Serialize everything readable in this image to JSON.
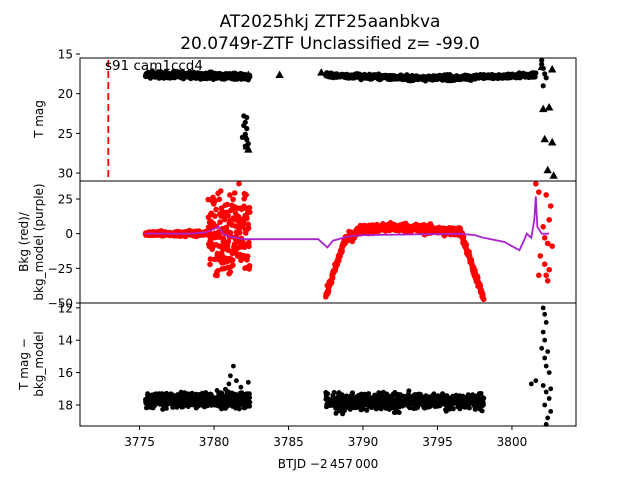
{
  "figure": {
    "title_line1": "AT2025hkj  ZTF25aanbkva",
    "title_line2": "20.0749r-ZTF Unclassified z= -99.0",
    "xlabel": "BTJD −2 457 000",
    "xlim": [
      3771,
      3804.3
    ],
    "xticks": [
      "3775",
      "3780",
      "3785",
      "3790",
      "3795",
      "3800"
    ]
  },
  "chart_data": [
    {
      "type": "scatter",
      "panel": "top",
      "ylabel": "T mag",
      "ylim": [
        31,
        15.5
      ],
      "y_inverted": true,
      "yticks": [
        "15",
        "20",
        "25",
        "30"
      ],
      "annotation": "s91 cam1ccd4",
      "marker_line_x": 3772.9,
      "series": [
        {
          "color": "#000000",
          "marker": "circle",
          "segments": [
            {
              "x": [
                3775.4,
                3782.4
              ],
              "y": [
                17.6,
                17.8
              ],
              "spread": 1.0
            },
            {
              "x": [
                3787.5,
                3801.6
              ],
              "y": [
                17.4,
                18.6
              ],
              "spread": 0.9,
              "curve": "dip"
            }
          ]
        },
        {
          "color": "#000000",
          "marker": "circle",
          "points": [
            [
              3782.0,
              22.8
            ],
            [
              3782.1,
              23.6
            ],
            [
              3782.2,
              24.4
            ],
            [
              3782.1,
              25.1
            ],
            [
              3782.2,
              25.8
            ],
            [
              3782.3,
              26.3
            ],
            [
              3782.0,
              24.0
            ],
            [
              3782.2,
              23.0
            ],
            [
              3782.1,
              26.6
            ],
            [
              3781.9,
              25.5
            ],
            [
              3802.0,
              15.8
            ],
            [
              3802.0,
              16.3
            ],
            [
              3802.1,
              16.8
            ],
            [
              3802.2,
              17.5
            ],
            [
              3802.3,
              18.0
            ],
            [
              3802.1,
              19.0
            ]
          ]
        },
        {
          "color": "#000000",
          "marker": "triangle",
          "points": [
            [
              3782.3,
              17.6
            ],
            [
              3784.4,
              17.6
            ],
            [
              3787.2,
              17.3
            ],
            [
              3782.1,
              25.3
            ],
            [
              3782.2,
              26.6
            ],
            [
              3782.3,
              27.0
            ],
            [
              3802.0,
              16.6
            ],
            [
              3802.7,
              16.9
            ],
            [
              3802.1,
              21.9
            ],
            [
              3802.5,
              21.7
            ],
            [
              3802.2,
              25.7
            ],
            [
              3802.7,
              26.1
            ],
            [
              3802.4,
              29.6
            ],
            [
              3802.8,
              30.3
            ]
          ]
        }
      ]
    },
    {
      "type": "scatter",
      "panel": "middle",
      "ylabel": [
        "Bkg (red)/",
        "bkg_model (purple)"
      ],
      "ylim": [
        -50,
        38
      ],
      "yticks": [
        "25",
        "0",
        "−25",
        "−50"
      ],
      "series": [
        {
          "name": "Bkg",
          "color": "#ff0000",
          "segments": [
            {
              "x": [
                3775.4,
                3782.4
              ],
              "shape": "noisy-flat",
              "level": 0,
              "burst": [
                3779.6,
                3782.4
              ]
            },
            {
              "x": [
                3787.5,
                3798.1
              ],
              "shape": "arch"
            }
          ],
          "points": [
            [
              3801.6,
              36
            ],
            [
              3801.8,
              30
            ],
            [
              3802.3,
              28
            ],
            [
              3802.6,
              20
            ],
            [
              3802.5,
              10
            ],
            [
              3802.2,
              -3
            ],
            [
              3802.4,
              -7
            ],
            [
              3801.9,
              -16
            ],
            [
              3802.2,
              -22
            ],
            [
              3802.5,
              -26
            ],
            [
              3802.3,
              -30
            ],
            [
              3801.8,
              -30
            ],
            [
              3802.4,
              -34
            ],
            [
              3802.7,
              -9
            ],
            [
              3802.1,
              5
            ]
          ]
        },
        {
          "name": "bkg_model",
          "color": "#aa22cc",
          "shape": "line",
          "points": [
            [
              3775.4,
              0
            ],
            [
              3778.5,
              0
            ],
            [
              3779.5,
              1
            ],
            [
              3780.3,
              5
            ],
            [
              3780.6,
              0
            ],
            [
              3781.0,
              -2
            ],
            [
              3781.5,
              -3
            ],
            [
              3782.0,
              -4
            ],
            [
              3782.4,
              -4
            ],
            [
              3787.0,
              -4
            ],
            [
              3787.6,
              -10
            ],
            [
              3788.0,
              -5
            ],
            [
              3789.0,
              -2
            ],
            [
              3790.0,
              -1
            ],
            [
              3796.5,
              0
            ],
            [
              3797.5,
              -1
            ],
            [
              3798.1,
              -3
            ],
            [
              3799.5,
              -6
            ],
            [
              3800.5,
              -12
            ],
            [
              3800.8,
              -5
            ],
            [
              3801.0,
              0
            ],
            [
              3801.3,
              -3
            ],
            [
              3801.5,
              10
            ],
            [
              3801.6,
              27
            ],
            [
              3801.7,
              5
            ],
            [
              3802.0,
              0
            ],
            [
              3802.5,
              0
            ]
          ]
        }
      ]
    },
    {
      "type": "scatter",
      "panel": "bottom",
      "ylabel": [
        "T mag −",
        "bkg_model"
      ],
      "ylim": [
        19.3,
        11.7
      ],
      "y_inverted": true,
      "yticks": [
        "12",
        "14",
        "16",
        "18"
      ],
      "series": [
        {
          "color": "#000000",
          "segments": [
            {
              "x": [
                3775.4,
                3782.4
              ],
              "y": [
                17.7,
                17.7
              ],
              "spread": 1.4
            },
            {
              "x": [
                3787.5,
                3798.1
              ],
              "y": [
                17.8,
                17.8
              ],
              "spread": 1.6
            }
          ],
          "points": [
            [
              3781.3,
              15.6
            ],
            [
              3781.1,
              16.2
            ],
            [
              3781.5,
              16.5
            ],
            [
              3781.0,
              16.7
            ],
            [
              3781.8,
              16.9
            ],
            [
              3782.3,
              16.6
            ],
            [
              3782.2,
              17.3
            ],
            [
              3780.2,
              17.1
            ],
            [
              3802.1,
              12.0
            ],
            [
              3802.2,
              12.4
            ],
            [
              3802.3,
              12.9
            ],
            [
              3802.1,
              13.5
            ],
            [
              3802.2,
              14.0
            ],
            [
              3802.0,
              14.5
            ],
            [
              3802.4,
              14.7
            ],
            [
              3802.2,
              15.1
            ],
            [
              3802.3,
              15.6
            ],
            [
              3802.5,
              16.0
            ],
            [
              3802.1,
              16.8
            ],
            [
              3802.3,
              17.2
            ],
            [
              3802.5,
              17.6
            ],
            [
              3802.2,
              18.0
            ],
            [
              3802.6,
              18.4
            ],
            [
              3802.4,
              18.8
            ],
            [
              3802.3,
              19.2
            ],
            [
              3801.3,
              16.7
            ],
            [
              3801.6,
              16.5
            ],
            [
              3802.6,
              17.0
            ]
          ]
        }
      ]
    }
  ]
}
